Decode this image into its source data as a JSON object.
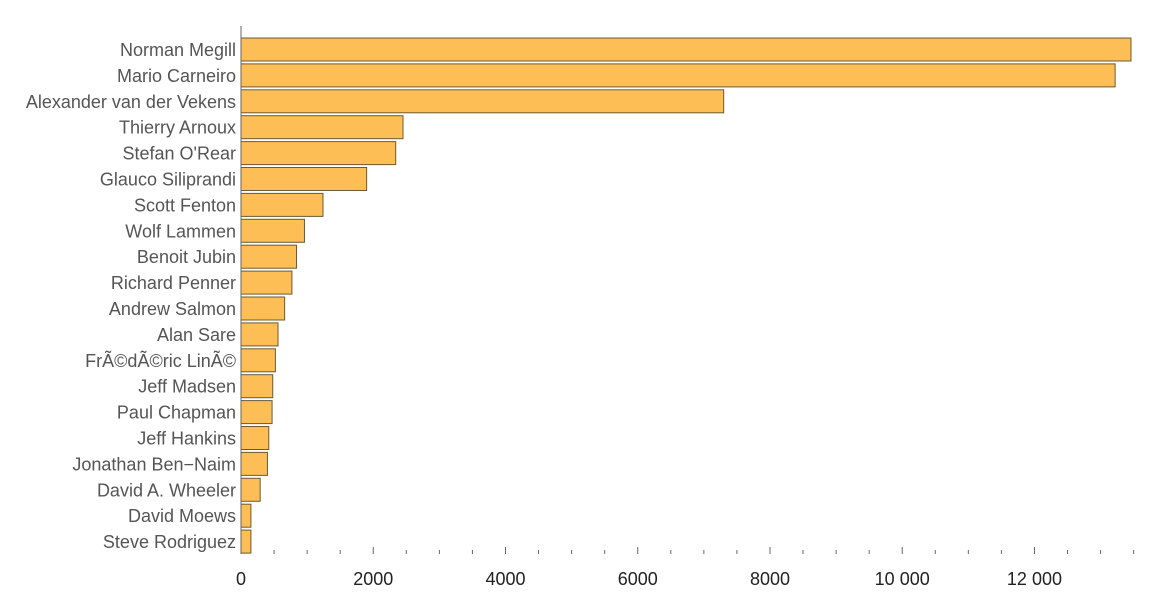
{
  "colors": {
    "bar_fill": "#fcbe55",
    "bar_edge": "#6b5a33",
    "axis": "#666666"
  },
  "chart_data": {
    "type": "bar",
    "orientation": "horizontal",
    "title": "",
    "xlabel": "",
    "ylabel": "",
    "xlim": [
      0,
      13500
    ],
    "grid": false,
    "legend": "none",
    "categories": [
      "Norman Megill",
      "Mario Carneiro",
      "Alexander van der Vekens",
      "Thierry Arnoux",
      "Stefan O'Rear",
      "Glauco Siliprandi",
      "Scott Fenton",
      "Wolf Lammen",
      "Benoit Jubin",
      "Richard Penner",
      "Andrew Salmon",
      "Alan Sare",
      "FrÃ©dÃ©ric LinÃ©",
      "Jeff Madsen",
      "Paul Chapman",
      "Jeff Hankins",
      "Jonathan Ben−Naim",
      "David A. Wheeler",
      "David Moews",
      "Steve Rodriguez"
    ],
    "values": [
      13460,
      13220,
      7300,
      2450,
      2340,
      1900,
      1240,
      960,
      840,
      770,
      660,
      560,
      520,
      480,
      470,
      420,
      400,
      290,
      150,
      150
    ],
    "ticks": [
      {
        "value": 0,
        "label": "0"
      },
      {
        "value": 2000,
        "label": "2000"
      },
      {
        "value": 4000,
        "label": "4000"
      },
      {
        "value": 6000,
        "label": "6000"
      },
      {
        "value": 8000,
        "label": "8000"
      },
      {
        "value": 10000,
        "label": "10 000"
      },
      {
        "value": 12000,
        "label": "12 000"
      }
    ]
  }
}
